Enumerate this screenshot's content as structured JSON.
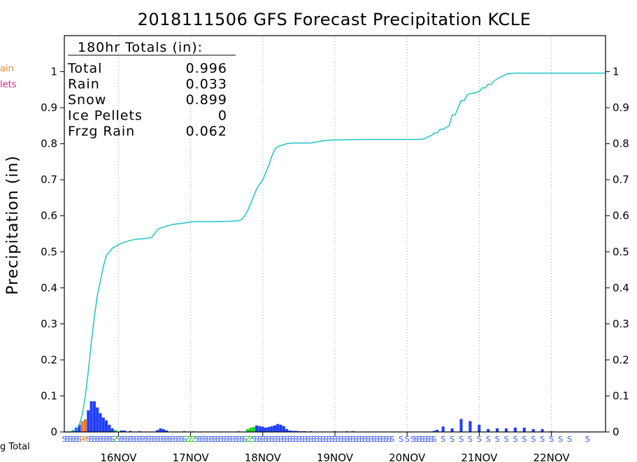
{
  "chart_data": {
    "type": "bar",
    "title": "2018111506 GFS Forecast Precipitation KCLE",
    "ylabel": "Precipitation (in)",
    "ylim": [
      0,
      1.1
    ],
    "yticks": [
      "0",
      "0.1",
      "0.2",
      "0.3",
      "0.4",
      "0.5",
      "0.6",
      "0.7",
      "0.8",
      "0.9",
      "1"
    ],
    "x_ticks": [
      "16NOV",
      "17NOV",
      "18NOV",
      "19NOV",
      "20NOV",
      "21NOV",
      "22NOV"
    ],
    "x_unit": "forecast hour",
    "xlim": [
      0,
      180
    ],
    "grid": "vertical dotted at day boundaries",
    "legend_partial": [
      "ain",
      "lets",
      "g Total"
    ],
    "totals": {
      "header": "180hr Totals (in):",
      "rows": [
        {
          "label": "Total",
          "value": "0.996"
        },
        {
          "label": "Rain",
          "value": "0.033"
        },
        {
          "label": "Snow",
          "value": "0.899"
        },
        {
          "label": "Ice Pellets",
          "value": "0"
        },
        {
          "label": "Frzg Rain",
          "value": "0.062"
        }
      ]
    },
    "hourly_bars": [
      {
        "h": 3,
        "v": 0.005,
        "t": "snow"
      },
      {
        "h": 4,
        "v": 0.012,
        "t": "snow"
      },
      {
        "h": 5,
        "v": 0.02,
        "t": "snow"
      },
      {
        "h": 6,
        "v": 0.03,
        "t": "rain"
      },
      {
        "h": 7,
        "v": 0.035,
        "t": "rain"
      },
      {
        "h": 8,
        "v": 0.06,
        "t": "snow"
      },
      {
        "h": 9,
        "v": 0.085,
        "t": "snow"
      },
      {
        "h": 10,
        "v": 0.085,
        "t": "snow"
      },
      {
        "h": 11,
        "v": 0.068,
        "t": "snow"
      },
      {
        "h": 12,
        "v": 0.052,
        "t": "snow"
      },
      {
        "h": 13,
        "v": 0.04,
        "t": "snow"
      },
      {
        "h": 14,
        "v": 0.032,
        "t": "snow"
      },
      {
        "h": 15,
        "v": 0.02,
        "t": "snow"
      },
      {
        "h": 16,
        "v": 0.01,
        "t": "snow"
      },
      {
        "h": 17,
        "v": 0.005,
        "t": "frzg"
      },
      {
        "h": 19,
        "v": 0.004,
        "t": "snow"
      },
      {
        "h": 20,
        "v": 0.004,
        "t": "snow"
      },
      {
        "h": 22,
        "v": 0.003,
        "t": "snow"
      },
      {
        "h": 25,
        "v": 0.002,
        "t": "snow"
      },
      {
        "h": 31,
        "v": 0.005,
        "t": "snow"
      },
      {
        "h": 32,
        "v": 0.01,
        "t": "snow"
      },
      {
        "h": 33,
        "v": 0.008,
        "t": "snow"
      },
      {
        "h": 34,
        "v": 0.004,
        "t": "snow"
      },
      {
        "h": 40,
        "v": 0.002,
        "t": "snow"
      },
      {
        "h": 43,
        "v": 0.002,
        "t": "frzg"
      },
      {
        "h": 53,
        "v": 0.001,
        "t": "snow"
      },
      {
        "h": 58,
        "v": 0.002,
        "t": "snow"
      },
      {
        "h": 61,
        "v": 0.008,
        "t": "frzg"
      },
      {
        "h": 62,
        "v": 0.012,
        "t": "frzg"
      },
      {
        "h": 63,
        "v": 0.014,
        "t": "frzg"
      },
      {
        "h": 64,
        "v": 0.018,
        "t": "snow"
      },
      {
        "h": 65,
        "v": 0.016,
        "t": "snow"
      },
      {
        "h": 66,
        "v": 0.015,
        "t": "snow"
      },
      {
        "h": 67,
        "v": 0.012,
        "t": "snow"
      },
      {
        "h": 68,
        "v": 0.014,
        "t": "snow"
      },
      {
        "h": 69,
        "v": 0.016,
        "t": "snow"
      },
      {
        "h": 70,
        "v": 0.018,
        "t": "snow"
      },
      {
        "h": 71,
        "v": 0.022,
        "t": "snow"
      },
      {
        "h": 72,
        "v": 0.02,
        "t": "snow"
      },
      {
        "h": 73,
        "v": 0.016,
        "t": "snow"
      },
      {
        "h": 74,
        "v": 0.008,
        "t": "snow"
      },
      {
        "h": 75,
        "v": 0.004,
        "t": "snow"
      },
      {
        "h": 76,
        "v": 0.003,
        "t": "snow"
      },
      {
        "h": 77,
        "v": 0.003,
        "t": "snow"
      },
      {
        "h": 78,
        "v": 0.002,
        "t": "snow"
      },
      {
        "h": 79,
        "v": 0.002,
        "t": "snow"
      },
      {
        "h": 80,
        "v": 0.002,
        "t": "snow"
      },
      {
        "h": 82,
        "v": 0.002,
        "t": "snow"
      },
      {
        "h": 85,
        "v": 0.001,
        "t": "snow"
      },
      {
        "h": 90,
        "v": 0.002,
        "t": "snow"
      },
      {
        "h": 94,
        "v": 0.002,
        "t": "snow"
      },
      {
        "h": 96,
        "v": 0.002,
        "t": "snow"
      },
      {
        "h": 120,
        "v": 0.001,
        "t": "snow"
      },
      {
        "h": 123,
        "v": 0.003,
        "t": "snow"
      },
      {
        "h": 124,
        "v": 0.006,
        "t": "snow"
      },
      {
        "h": 126,
        "v": 0.015,
        "t": "snow"
      },
      {
        "h": 129,
        "v": 0.01,
        "t": "snow"
      },
      {
        "h": 132,
        "v": 0.036,
        "t": "snow"
      },
      {
        "h": 135,
        "v": 0.03,
        "t": "snow"
      },
      {
        "h": 138,
        "v": 0.02,
        "t": "snow"
      },
      {
        "h": 141,
        "v": 0.008,
        "t": "snow"
      },
      {
        "h": 144,
        "v": 0.01,
        "t": "snow"
      },
      {
        "h": 147,
        "v": 0.01,
        "t": "snow"
      },
      {
        "h": 150,
        "v": 0.012,
        "t": "snow"
      },
      {
        "h": 153,
        "v": 0.012,
        "t": "snow"
      },
      {
        "h": 156,
        "v": 0.008,
        "t": "snow"
      },
      {
        "h": 159,
        "v": 0.008,
        "t": "snow"
      },
      {
        "h": 162,
        "v": 0.002,
        "t": "snow"
      }
    ],
    "cumulative": [
      [
        0,
        0
      ],
      [
        2,
        0
      ],
      [
        4,
        0.005
      ],
      [
        5,
        0.02
      ],
      [
        6,
        0.05
      ],
      [
        7,
        0.1
      ],
      [
        8,
        0.17
      ],
      [
        9,
        0.25
      ],
      [
        10,
        0.32
      ],
      [
        11,
        0.38
      ],
      [
        12,
        0.42
      ],
      [
        13,
        0.46
      ],
      [
        14,
        0.49
      ],
      [
        15,
        0.5
      ],
      [
        16,
        0.51
      ],
      [
        17,
        0.515
      ],
      [
        18,
        0.52
      ],
      [
        20,
        0.527
      ],
      [
        22,
        0.532
      ],
      [
        24,
        0.535
      ],
      [
        27,
        0.537
      ],
      [
        29,
        0.54
      ],
      [
        30,
        0.55
      ],
      [
        31,
        0.562
      ],
      [
        32,
        0.566
      ],
      [
        34,
        0.571
      ],
      [
        36,
        0.576
      ],
      [
        38,
        0.578
      ],
      [
        40,
        0.58
      ],
      [
        42,
        0.583
      ],
      [
        44,
        0.584
      ],
      [
        50,
        0.584
      ],
      [
        55,
        0.585
      ],
      [
        58,
        0.586
      ],
      [
        59,
        0.59
      ],
      [
        60,
        0.6
      ],
      [
        61,
        0.615
      ],
      [
        62,
        0.635
      ],
      [
        63,
        0.655
      ],
      [
        64,
        0.675
      ],
      [
        65,
        0.688
      ],
      [
        66,
        0.7
      ],
      [
        67,
        0.72
      ],
      [
        68,
        0.74
      ],
      [
        69,
        0.765
      ],
      [
        70,
        0.785
      ],
      [
        71,
        0.792
      ],
      [
        72,
        0.795
      ],
      [
        74,
        0.8
      ],
      [
        76,
        0.802
      ],
      [
        78,
        0.802
      ],
      [
        82,
        0.802
      ],
      [
        84,
        0.805
      ],
      [
        86,
        0.808
      ],
      [
        88,
        0.81
      ],
      [
        92,
        0.811
      ],
      [
        100,
        0.812
      ],
      [
        110,
        0.812
      ],
      [
        118,
        0.812
      ],
      [
        120,
        0.814
      ],
      [
        121,
        0.82
      ],
      [
        122,
        0.822
      ],
      [
        123,
        0.83
      ],
      [
        124,
        0.83
      ],
      [
        125,
        0.84
      ],
      [
        126,
        0.84
      ],
      [
        127,
        0.845
      ],
      [
        128,
        0.85
      ],
      [
        129,
        0.88
      ],
      [
        130,
        0.88
      ],
      [
        131,
        0.9
      ],
      [
        132,
        0.92
      ],
      [
        133,
        0.92
      ],
      [
        134,
        0.935
      ],
      [
        135,
        0.94
      ],
      [
        136,
        0.94
      ],
      [
        138,
        0.945
      ],
      [
        139,
        0.955
      ],
      [
        140,
        0.955
      ],
      [
        141,
        0.965
      ],
      [
        142,
        0.965
      ],
      [
        143,
        0.975
      ],
      [
        144,
        0.98
      ],
      [
        145,
        0.985
      ],
      [
        146,
        0.988
      ],
      [
        147,
        0.993
      ],
      [
        148,
        0.995
      ],
      [
        150,
        0.996
      ],
      [
        180,
        0.996
      ]
    ],
    "ptype_labels": {
      "snow_hours": [
        0,
        1,
        2,
        3,
        4,
        5,
        8,
        9,
        10,
        11,
        12,
        13,
        14,
        15,
        16,
        18,
        19,
        20,
        21,
        22,
        23,
        24,
        25,
        26,
        27,
        28,
        29,
        30,
        31,
        32,
        33,
        34,
        35,
        36,
        37,
        38,
        39,
        40,
        44,
        45,
        46,
        47,
        48,
        49,
        50,
        51,
        52,
        53,
        54,
        55,
        56,
        57,
        58,
        59,
        60,
        63,
        64,
        65,
        66,
        67,
        68,
        69,
        70,
        71,
        72,
        73,
        74,
        75,
        76,
        77,
        78,
        79,
        80,
        81,
        82,
        83,
        84,
        85,
        86,
        87,
        88,
        89,
        90,
        91,
        92,
        93,
        94,
        95,
        96,
        97,
        98,
        99,
        100,
        101,
        102,
        103,
        104,
        105,
        106,
        107,
        108,
        109,
        112,
        114,
        116,
        117,
        118,
        119,
        120,
        121,
        122,
        123,
        126,
        129,
        132,
        135,
        138,
        141,
        144,
        147,
        150,
        153,
        156,
        159,
        162,
        165,
        168,
        174
      ],
      "rain_hours": [
        6,
        7
      ],
      "frzg_hours": [
        17,
        41,
        42,
        43,
        61,
        62
      ]
    },
    "colors": {
      "snow": "#1f3dff",
      "rain": "#e8792d",
      "frzg": "#19d419",
      "total_line": "#1fc4c4",
      "grid": "#a0a0a0",
      "snow_label": "#3355ff",
      "rain_label": "#ee8a33",
      "frzg_label": "#22cc22",
      "legend_rain": "#ee8a33",
      "legend_pellets": "#e0208c"
    },
    "labels": {
      "snow_symbol": "S",
      "rain_symbol": "R",
      "frzg_symbol": "Z"
    }
  }
}
